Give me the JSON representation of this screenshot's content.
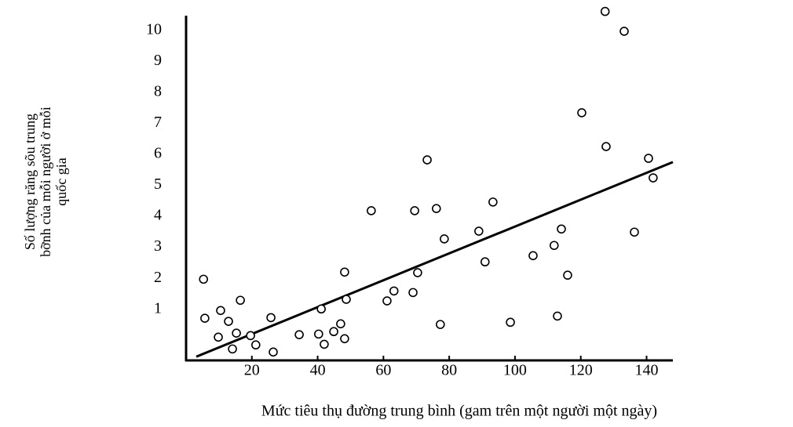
{
  "chart_data": {
    "type": "scatter",
    "xlabel": "Mức tiêu thụ đường trung bình (gam trên một người một ngày)",
    "ylabel": [
      "Số lượng răng sõu trung",
      "bỡnh của mỗi người ở mỗi",
      "quốc gia"
    ],
    "xlim": [
      0,
      148
    ],
    "ylim": [
      -0.65,
      10.6
    ],
    "xticks": [
      20,
      40,
      60,
      80,
      100,
      120,
      140
    ],
    "yticks": [
      1,
      2,
      3,
      4,
      5,
      6,
      7,
      8,
      9,
      10
    ],
    "grid": false,
    "color": "#000000",
    "x": [
      5.3,
      5.7,
      9.8,
      10.5,
      12.9,
      14.1,
      15.3,
      16.5,
      19.6,
      21.2,
      25.8,
      26.5,
      34.4,
      40.3,
      41.1,
      42.0,
      44.9,
      47.0,
      48.2,
      48.2,
      48.7,
      56.3,
      61.1,
      63.2,
      69.0,
      69.5,
      70.4,
      73.3,
      76.1,
      77.3,
      78.5,
      89.0,
      90.9,
      93.3,
      98.6,
      105.5,
      111.9,
      112.9,
      114.1,
      116.0,
      120.3,
      127.4,
      127.7,
      133.2,
      136.3,
      140.6,
      142.0
    ],
    "values": [
      1.97,
      0.71,
      0.1,
      0.96,
      0.61,
      -0.28,
      0.23,
      1.29,
      0.15,
      -0.15,
      0.73,
      -0.38,
      0.18,
      0.2,
      1.01,
      -0.13,
      0.28,
      0.53,
      0.05,
      2.2,
      1.32,
      4.18,
      1.27,
      1.59,
      1.54,
      4.18,
      2.18,
      5.82,
      4.25,
      0.51,
      3.27,
      3.52,
      2.53,
      4.46,
      0.58,
      2.73,
      3.06,
      0.78,
      3.59,
      2.1,
      7.34,
      10.61,
      6.25,
      9.97,
      3.49,
      5.87,
      5.24
    ],
    "trendline": {
      "x": [
        3.1,
        148
      ],
      "y": [
        -0.53,
        5.75
      ]
    }
  }
}
